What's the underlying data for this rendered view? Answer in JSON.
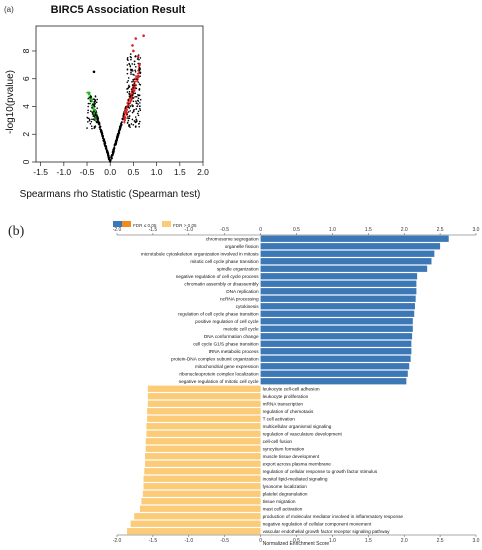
{
  "chart_data": [
    {
      "type": "scatter",
      "panel_label": "(a)",
      "title": "BIRC5 Association Result",
      "xlabel": "Spearmans rho Statistic (Spearman test)",
      "ylabel": "-log10(pvalue)",
      "xlim": [
        -1.6,
        2.0
      ],
      "ylim": [
        0,
        9.8
      ],
      "xticks": [
        "-1.5",
        "-1.0",
        "-0.5",
        "0.0",
        "0.5",
        "1.0",
        "1.5",
        "2.0"
      ],
      "yticks": [
        "0",
        "2",
        "4",
        "6",
        "8"
      ],
      "colors": {
        "neutral": "#000000",
        "negative_significant": "#22bb22",
        "positive_significant": "#dd2222"
      },
      "point_groups": [
        {
          "color": "neutral",
          "note": "non-significant genes, rho from -0.33 to 0.35"
        },
        {
          "color": "negative_significant",
          "note": "rho from -0.5 to -0.3"
        },
        {
          "color": "positive_significant",
          "note": "rho from 0.3 to 0.65"
        }
      ],
      "highlighted_points": [
        [
          0.55,
          8.9
        ],
        [
          0.72,
          9.1
        ],
        [
          0.48,
          8.4
        ],
        [
          0.5,
          8.0
        ],
        [
          0.6,
          7.6
        ],
        [
          0.63,
          7.0
        ],
        [
          -0.35,
          6.5
        ]
      ]
    },
    {
      "type": "bar",
      "orientation": "horizontal",
      "panel_label": "(b)",
      "xlabel": "Normalized Enrichment Score",
      "xlim": [
        -2.0,
        3.0
      ],
      "xticks": [
        "-2.0",
        "-1.5",
        "-1.0",
        "-0.5",
        "0",
        "0.5",
        "1.0",
        "1.5",
        "2.0",
        "2.5",
        "3.0"
      ],
      "legend": [
        {
          "label": "FDR ≤ 0.05",
          "color": "#f28a22"
        },
        {
          "label": "FDR > 0.05",
          "color": "#fbcb77"
        }
      ],
      "colors": {
        "positive": "#3d78b6",
        "negative": "#fbcb77"
      },
      "categories": [
        "chromosome segregation",
        "organelle fission",
        "microtubule cytoskeleton organization involved in mitosis",
        "mitotic cell cycle phase transition",
        "spindle organization",
        "negative regulation of cell cycle process",
        "chromatin assembly or disassembly",
        "DNA replication",
        "ncRNA processing",
        "cytokinesis",
        "regulation of cell cycle phase transition",
        "positive regulation of cell cycle",
        "meiotic cell cycle",
        "DNA conformation change",
        "cell cycle G1/S phase transition",
        "tRNA metabolic process",
        "protein-DNA complex subunit organization",
        "mitochondrial gene expression",
        "ribonucleoprotein complex localization",
        "negative regulation of mitotic cell cycle",
        "leukocyte cell-cell adhesion",
        "leukocyte proliferation",
        "mRNA transcription",
        "regulation of chemotaxis",
        "T cell activation",
        "multicellular organismal signaling",
        "regulation of vasculature development",
        "cell-cell fusion",
        "syncytium formation",
        "muscle tissue development",
        "export across plasma membrane",
        "regulation of cellular response to growth factor stimulus",
        "inositol lipid-mediated signaling",
        "lysosome localization",
        "platelet degranulation",
        "tissue migration",
        "mast cell activation",
        "production of molecular mediator involved in inflammatory response",
        "negative regulation of cellular component movement",
        "vascular endothelial growth factor receptor signaling pathway"
      ],
      "values": [
        2.62,
        2.5,
        2.42,
        2.38,
        2.32,
        2.18,
        2.17,
        2.17,
        2.16,
        2.15,
        2.14,
        2.12,
        2.12,
        2.11,
        2.1,
        2.1,
        2.09,
        2.07,
        2.05,
        2.03,
        -1.57,
        -1.57,
        -1.57,
        -1.58,
        -1.58,
        -1.59,
        -1.59,
        -1.6,
        -1.6,
        -1.61,
        -1.61,
        -1.62,
        -1.63,
        -1.63,
        -1.64,
        -1.66,
        -1.68,
        -1.76,
        -1.81,
        -1.86
      ]
    }
  ]
}
